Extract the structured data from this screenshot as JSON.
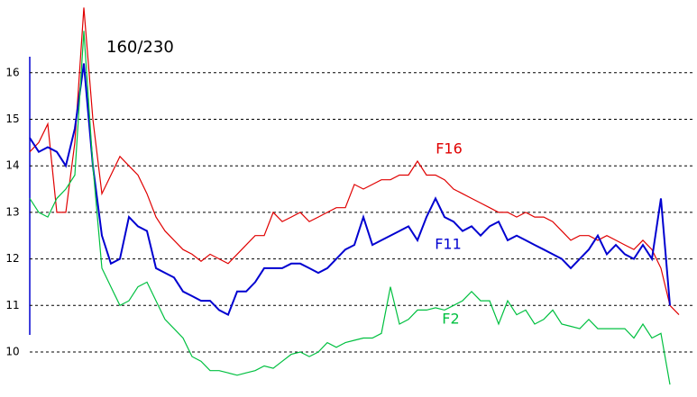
{
  "chart_data": {
    "type": "line",
    "title": "160/230",
    "ylim": [
      9.1,
      17.5
    ],
    "yticks": [
      10,
      11,
      12,
      13,
      14,
      15,
      16
    ],
    "grid": true,
    "series": [
      {
        "name": "F16",
        "color": "#e00000",
        "values": [
          14.3,
          14.5,
          14.9,
          13.0,
          13.0,
          14.5,
          17.4,
          15.0,
          13.4,
          13.8,
          14.2,
          14.0,
          13.8,
          13.4,
          12.9,
          12.6,
          12.4,
          12.2,
          12.1,
          11.95,
          12.1,
          12.0,
          11.9,
          12.1,
          12.3,
          12.5,
          12.5,
          13.0,
          12.8,
          12.9,
          13.0,
          12.8,
          12.9,
          13.0,
          13.1,
          13.1,
          13.6,
          13.5,
          13.6,
          13.7,
          13.7,
          13.8,
          13.8,
          14.1,
          13.8,
          13.8,
          13.7,
          13.5,
          13.4,
          13.3,
          13.2,
          13.1,
          13.0,
          13.0,
          12.9,
          13.0,
          12.9,
          12.9,
          12.8,
          12.6,
          12.4,
          12.5,
          12.5,
          12.4,
          12.5,
          12.4,
          12.3,
          12.2,
          12.4,
          12.2,
          11.8,
          11.0,
          10.8
        ]
      },
      {
        "name": "F11",
        "color": "#0000d0",
        "values": [
          14.6,
          14.3,
          14.4,
          14.3,
          14.0,
          14.8,
          16.2,
          14.0,
          12.5,
          11.9,
          12.0,
          12.9,
          12.7,
          12.6,
          11.8,
          11.7,
          11.6,
          11.3,
          11.2,
          11.1,
          11.1,
          10.9,
          10.8,
          11.3,
          11.3,
          11.5,
          11.8,
          11.8,
          11.8,
          11.9,
          11.9,
          11.8,
          11.7,
          11.8,
          12.0,
          12.2,
          12.3,
          12.9,
          12.3,
          12.4,
          12.5,
          12.6,
          12.7,
          12.4,
          12.9,
          13.3,
          12.9,
          12.8,
          12.6,
          12.7,
          12.5,
          12.7,
          12.8,
          12.4,
          12.5,
          12.4,
          12.3,
          12.2,
          12.1,
          12.0,
          11.8,
          12.0,
          12.2,
          12.5,
          12.1,
          12.3,
          12.1,
          12.0,
          12.3,
          12.0,
          13.3,
          11.0,
          null
        ]
      },
      {
        "name": "F2",
        "color": "#00c040",
        "values": [
          13.3,
          13.0,
          12.9,
          13.3,
          13.5,
          13.8,
          16.9,
          14.0,
          11.8,
          11.4,
          11.0,
          11.1,
          11.4,
          11.5,
          11.1,
          10.7,
          10.5,
          10.3,
          9.9,
          9.8,
          9.6,
          9.6,
          9.55,
          9.5,
          9.55,
          9.6,
          9.7,
          9.65,
          9.8,
          9.95,
          10.0,
          9.9,
          10.0,
          10.2,
          10.1,
          10.2,
          10.25,
          10.3,
          10.3,
          10.4,
          11.4,
          10.6,
          10.7,
          10.9,
          10.9,
          10.95,
          10.9,
          11.0,
          11.1,
          11.3,
          11.1,
          11.1,
          10.6,
          11.1,
          10.8,
          10.9,
          10.6,
          10.7,
          10.9,
          10.6,
          10.55,
          10.5,
          10.7,
          10.5,
          10.5,
          10.5,
          10.5,
          10.3,
          10.6,
          10.3,
          10.4,
          9.3,
          null
        ]
      }
    ]
  }
}
